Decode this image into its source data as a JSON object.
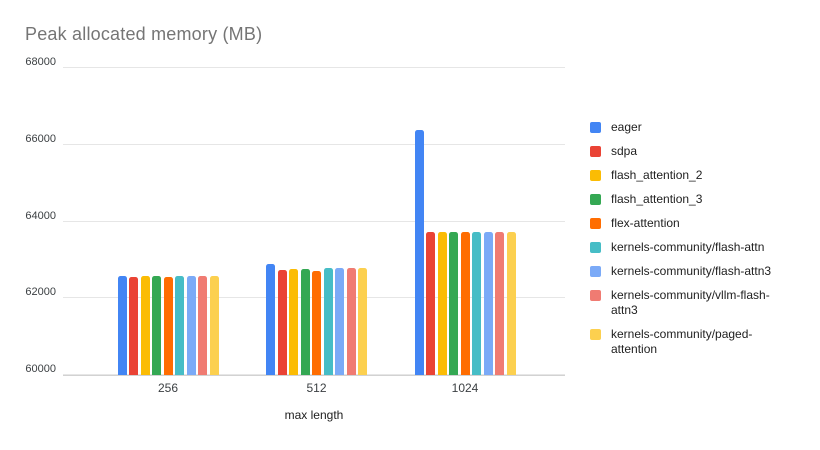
{
  "chart_data": {
    "type": "bar",
    "title": "Peak allocated memory (MB)",
    "xlabel": "max length",
    "ylabel": "",
    "categories": [
      "256",
      "512",
      "1024"
    ],
    "series": [
      {
        "name": "eager",
        "color": "#4285F4",
        "values": [
          62590,
          62880,
          66380
        ]
      },
      {
        "name": "sdpa",
        "color": "#EA4335",
        "values": [
          62560,
          62730,
          63720
        ]
      },
      {
        "name": "flash_attention_2",
        "color": "#FBBC04",
        "values": [
          62570,
          62760,
          63720
        ]
      },
      {
        "name": "flash_attention_3",
        "color": "#34A853",
        "values": [
          62570,
          62760,
          63720
        ]
      },
      {
        "name": "flex-attention",
        "color": "#FF6D01",
        "values": [
          62560,
          62710,
          63720
        ]
      },
      {
        "name": "kernels-community/flash-attn",
        "color": "#46BDC6",
        "values": [
          62570,
          62790,
          63720
        ]
      },
      {
        "name": "kernels-community/flash-attn3",
        "color": "#7BAAF7",
        "values": [
          62570,
          62790,
          63720
        ]
      },
      {
        "name": "kernels-community/vllm-flash-attn3",
        "color": "#F07B72",
        "values": [
          62570,
          62780,
          63720
        ]
      },
      {
        "name": "kernels-community/paged-attention",
        "color": "#FCD04F",
        "values": [
          62570,
          62790,
          63720
        ]
      }
    ],
    "ylim": [
      60000,
      68000
    ],
    "yticks": [
      60000,
      62000,
      64000,
      66000,
      68000
    ],
    "grid": true,
    "legend_position": "right",
    "title_color": "#757575",
    "axis_text_color": "#3c4043",
    "gridline_color": "#e6e6e6"
  }
}
